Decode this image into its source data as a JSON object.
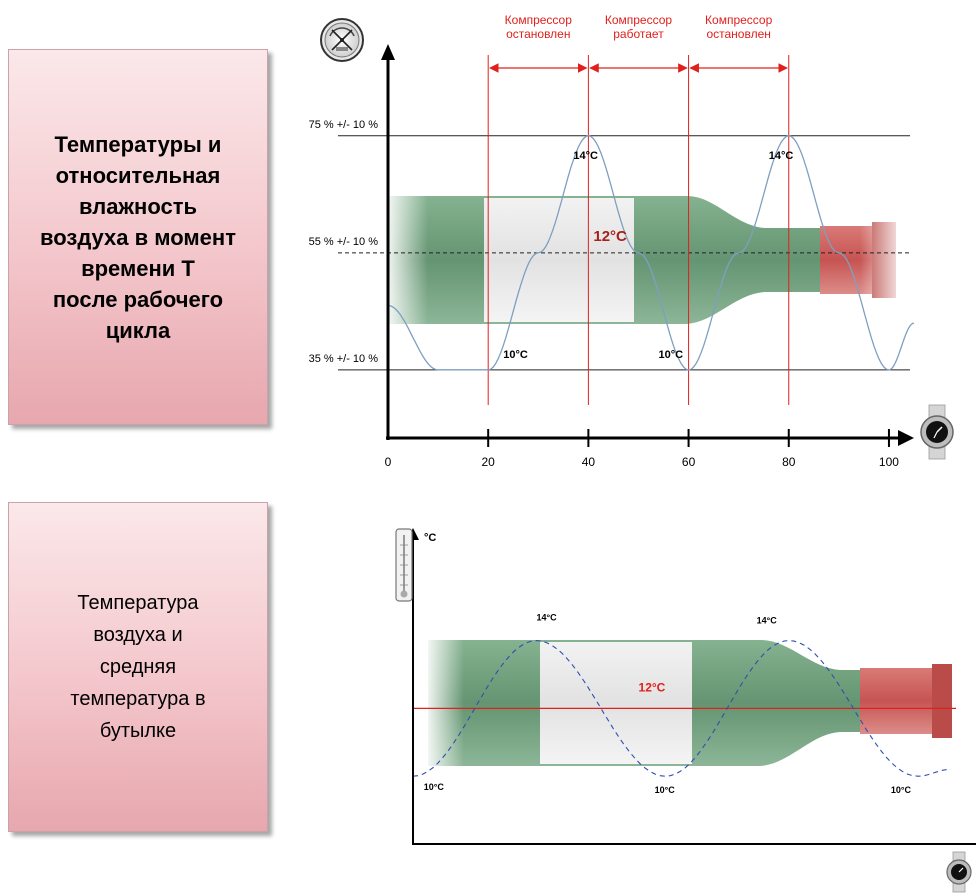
{
  "panels": {
    "top": "Температуры и\nотносительная\nвлажность\nвоздуха в момент\nвремени T\nпосле рабочего\nцикла",
    "bottom": "Температура\nвоздуха и\nсредняя\nтемпература в\nбутылке"
  },
  "colors": {
    "accent_red": "#e0201c",
    "curve_blue": "#7f9fc0",
    "dashed_blue": "#2f4fb0",
    "bottle_green": "#5c8f6a",
    "neck_red": "#c65452"
  },
  "icons": {
    "top_y_axis": "hygrometer-icon",
    "top_x_axis": "wristwatch-icon",
    "bottom_y_axis": "thermometer-icon",
    "bottom_x_axis": "wristwatch-icon"
  },
  "chart_data": [
    {
      "type": "line",
      "x_ticks": [
        0,
        20,
        40,
        60,
        80,
        100
      ],
      "x_tick_labels": [
        "0",
        "20",
        "40",
        "60",
        "80",
        "100"
      ],
      "xlim": [
        0,
        105
      ],
      "y_levels": [
        {
          "label": "75 % +/- 10 %",
          "value": 75
        },
        {
          "label": "55 % +/- 10 %",
          "value": 55
        },
        {
          "label": "35 % +/- 10 %",
          "value": 35
        }
      ],
      "ylim": [
        29,
        90
      ],
      "series": [
        {
          "x": [
            0,
            10,
            20,
            30,
            40,
            50,
            60,
            70,
            80,
            90,
            100,
            105
          ],
          "values": [
            46,
            35,
            35,
            55,
            75,
            55,
            35,
            55,
            75,
            55,
            35,
            43
          ]
        }
      ],
      "annotations": [
        {
          "text": "14°C",
          "x": 37,
          "y": 71
        },
        {
          "text": "14°C",
          "x": 76,
          "y": 71
        },
        {
          "text": "12°C",
          "x": 41,
          "y": 57
        },
        {
          "text": "10°C",
          "x": 23,
          "y": 37
        },
        {
          "text": "10°C",
          "x": 54,
          "y": 37
        }
      ],
      "phase_markers": [
        20,
        40,
        60,
        80
      ],
      "phases": [
        {
          "label": "Компрессор\nостановлен",
          "from": 20,
          "to": 40
        },
        {
          "label": "Компрессор\nработает",
          "from": 40,
          "to": 60
        },
        {
          "label": "Компрессор\nостановлен",
          "from": 60,
          "to": 80
        }
      ]
    },
    {
      "type": "line",
      "ylabel": "°C",
      "xlim": [
        0,
        100
      ],
      "ylim": [
        8,
        18
      ],
      "reference_line": {
        "label": "12°C",
        "value": 12
      },
      "series": [
        {
          "style": "dashed",
          "x": [
            0,
            23,
            47,
            70,
            94,
            100
          ],
          "values": [
            10,
            14,
            10,
            14,
            10,
            10.2
          ]
        }
      ],
      "annotations": [
        {
          "text": "14°C",
          "x": 23,
          "y": 14.6
        },
        {
          "text": "14°C",
          "x": 64,
          "y": 14.5
        },
        {
          "text": "12°C",
          "x": 42,
          "y": 12.5
        },
        {
          "text": "10°C",
          "x": 2,
          "y": 9.6
        },
        {
          "text": "10°C",
          "x": 45,
          "y": 9.5
        },
        {
          "text": "10°C",
          "x": 89,
          "y": 9.5
        }
      ]
    }
  ]
}
